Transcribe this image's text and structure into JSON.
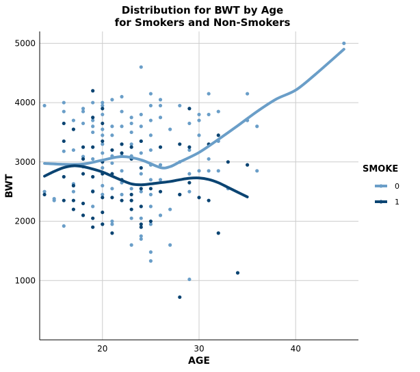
{
  "chart_data": {
    "type": "scatter",
    "title": "Distribution for BWT by Age",
    "subtitle": "for Smokers and Non-Smokers",
    "xlabel": "AGE",
    "ylabel": "BWT",
    "xlim": [
      13.5,
      46.5
    ],
    "ylim": [
      0,
      5200
    ],
    "x_ticks": [
      20,
      30,
      40
    ],
    "y_ticks": [
      1000,
      2000,
      3000,
      4000,
      5000
    ],
    "grid": true,
    "legend": {
      "title": "SMOKE",
      "placement": "right",
      "entries": [
        "0",
        "1"
      ]
    },
    "colors": {
      "0": "#6a9ec8",
      "1": "#0b4472"
    },
    "series": [
      {
        "name": "0",
        "points": [
          [
            14,
            3950
          ],
          [
            14,
            2500
          ],
          [
            15,
            2380
          ],
          [
            15,
            2350
          ],
          [
            16,
            4000
          ],
          [
            16,
            3850
          ],
          [
            16,
            3180
          ],
          [
            16,
            1920
          ],
          [
            17,
            3700
          ],
          [
            17,
            3200
          ],
          [
            17,
            2630
          ],
          [
            17,
            2500
          ],
          [
            18,
            3900
          ],
          [
            18,
            3850
          ],
          [
            18,
            3650
          ],
          [
            18,
            3090
          ],
          [
            18,
            2920
          ],
          [
            19,
            4000
          ],
          [
            19,
            3700
          ],
          [
            19,
            3600
          ],
          [
            19,
            3500
          ],
          [
            19,
            3050
          ],
          [
            19,
            2510
          ],
          [
            19,
            2250
          ],
          [
            20,
            4000
          ],
          [
            20,
            3950
          ],
          [
            20,
            3800
          ],
          [
            20,
            3550
          ],
          [
            20,
            3450
          ],
          [
            20,
            3300
          ],
          [
            20,
            3150
          ],
          [
            20,
            2900
          ],
          [
            20,
            2600
          ],
          [
            20,
            2450
          ],
          [
            20,
            1950
          ],
          [
            21,
            4050
          ],
          [
            21,
            3600
          ],
          [
            21,
            3450
          ],
          [
            21,
            3100
          ],
          [
            21,
            2980
          ],
          [
            21,
            2550
          ],
          [
            21,
            2000
          ],
          [
            21,
            1950
          ],
          [
            22,
            4100
          ],
          [
            22,
            3850
          ],
          [
            22,
            3600
          ],
          [
            22,
            3300
          ],
          [
            22,
            3100
          ],
          [
            22,
            2850
          ],
          [
            22,
            2650
          ],
          [
            22,
            2450
          ],
          [
            23,
            3750
          ],
          [
            23,
            3650
          ],
          [
            23,
            3500
          ],
          [
            23,
            3300
          ],
          [
            23,
            3100
          ],
          [
            23,
            2550
          ],
          [
            23,
            2350
          ],
          [
            23,
            2050
          ],
          [
            23,
            1600
          ],
          [
            24,
            4600
          ],
          [
            24,
            3800
          ],
          [
            24,
            3600
          ],
          [
            24,
            3350
          ],
          [
            24,
            3150
          ],
          [
            24,
            2800
          ],
          [
            24,
            2500
          ],
          [
            24,
            2050
          ],
          [
            24,
            1750
          ],
          [
            24,
            1700
          ],
          [
            25,
            4150
          ],
          [
            25,
            3950
          ],
          [
            25,
            3700
          ],
          [
            25,
            3450
          ],
          [
            25,
            3200
          ],
          [
            25,
            2950
          ],
          [
            25,
            2700
          ],
          [
            25,
            2450
          ],
          [
            25,
            2250
          ],
          [
            25,
            1950
          ],
          [
            25,
            1480
          ],
          [
            25,
            1330
          ],
          [
            26,
            4050
          ],
          [
            26,
            3950
          ],
          [
            26,
            3750
          ],
          [
            26,
            2950
          ],
          [
            26,
            2700
          ],
          [
            26,
            2100
          ],
          [
            27,
            3550
          ],
          [
            27,
            2200
          ],
          [
            27,
            1600
          ],
          [
            28,
            3950
          ],
          [
            28,
            3000
          ],
          [
            28,
            2450
          ],
          [
            29,
            3650
          ],
          [
            29,
            3200
          ],
          [
            29,
            2800
          ],
          [
            29,
            2500
          ],
          [
            29,
            1020
          ],
          [
            30,
            3800
          ],
          [
            30,
            3700
          ],
          [
            30,
            3450
          ],
          [
            30,
            2850
          ],
          [
            31,
            4150
          ],
          [
            31,
            3800
          ],
          [
            31,
            3050
          ],
          [
            31,
            2850
          ],
          [
            32,
            3850
          ],
          [
            32,
            3350
          ],
          [
            32,
            2850
          ],
          [
            33,
            2550
          ],
          [
            35,
            4150
          ],
          [
            35,
            3700
          ],
          [
            36,
            3600
          ],
          [
            36,
            2850
          ],
          [
            45,
            5000
          ]
        ],
        "smooth_curve": [
          [
            14,
            2975
          ],
          [
            16,
            2960
          ],
          [
            18,
            2965
          ],
          [
            20,
            3030
          ],
          [
            22,
            3090
          ],
          [
            24,
            3035
          ],
          [
            26,
            2905
          ],
          [
            27,
            2920
          ],
          [
            28,
            3000
          ],
          [
            30,
            3160
          ],
          [
            32,
            3380
          ],
          [
            34,
            3610
          ],
          [
            36,
            3850
          ],
          [
            38,
            4060
          ],
          [
            40,
            4210
          ],
          [
            42,
            4470
          ],
          [
            45,
            4900
          ]
        ]
      },
      {
        "name": "1",
        "points": [
          [
            14,
            2450
          ],
          [
            16,
            3650
          ],
          [
            16,
            3350
          ],
          [
            16,
            2750
          ],
          [
            16,
            2350
          ],
          [
            17,
            3550
          ],
          [
            17,
            2950
          ],
          [
            17,
            2600
          ],
          [
            17,
            2350
          ],
          [
            17,
            2200
          ],
          [
            18,
            3250
          ],
          [
            18,
            3050
          ],
          [
            18,
            2800
          ],
          [
            18,
            2300
          ],
          [
            18,
            2100
          ],
          [
            19,
            4200
          ],
          [
            19,
            3750
          ],
          [
            19,
            3250
          ],
          [
            19,
            2750
          ],
          [
            19,
            2500
          ],
          [
            19,
            2050
          ],
          [
            19,
            1900
          ],
          [
            20,
            3900
          ],
          [
            20,
            3650
          ],
          [
            20,
            3350
          ],
          [
            20,
            3000
          ],
          [
            20,
            2800
          ],
          [
            20,
            2400
          ],
          [
            20,
            2150
          ],
          [
            20,
            1950
          ],
          [
            21,
            3200
          ],
          [
            21,
            2800
          ],
          [
            21,
            2400
          ],
          [
            21,
            1800
          ],
          [
            22,
            3300
          ],
          [
            22,
            3150
          ],
          [
            22,
            2700
          ],
          [
            22,
            2350
          ],
          [
            23,
            3250
          ],
          [
            23,
            3050
          ],
          [
            23,
            2450
          ],
          [
            23,
            2350
          ],
          [
            23,
            2200
          ],
          [
            24,
            3350
          ],
          [
            24,
            2900
          ],
          [
            24,
            2550
          ],
          [
            24,
            2250
          ],
          [
            24,
            1950
          ],
          [
            24,
            1900
          ],
          [
            25,
            2550
          ],
          [
            25,
            2000
          ],
          [
            26,
            3250
          ],
          [
            26,
            2500
          ],
          [
            28,
            3300
          ],
          [
            28,
            2450
          ],
          [
            28,
            720
          ],
          [
            29,
            3900
          ],
          [
            29,
            3250
          ],
          [
            29,
            2650
          ],
          [
            30,
            2400
          ],
          [
            31,
            3300
          ],
          [
            31,
            2350
          ],
          [
            32,
            3450
          ],
          [
            32,
            1800
          ],
          [
            33,
            3000
          ],
          [
            34,
            1130
          ],
          [
            35,
            2950
          ]
        ],
        "smooth_curve": [
          [
            14,
            2760
          ],
          [
            15,
            2840
          ],
          [
            16,
            2905
          ],
          [
            17,
            2935
          ],
          [
            18,
            2920
          ],
          [
            19,
            2880
          ],
          [
            20,
            2830
          ],
          [
            21,
            2760
          ],
          [
            22,
            2690
          ],
          [
            23,
            2630
          ],
          [
            24,
            2615
          ],
          [
            25,
            2630
          ],
          [
            26,
            2650
          ],
          [
            27,
            2670
          ],
          [
            28,
            2700
          ],
          [
            29,
            2725
          ],
          [
            30,
            2730
          ],
          [
            31,
            2705
          ],
          [
            32,
            2650
          ],
          [
            33,
            2570
          ],
          [
            34,
            2490
          ],
          [
            35,
            2410
          ]
        ]
      }
    ]
  }
}
